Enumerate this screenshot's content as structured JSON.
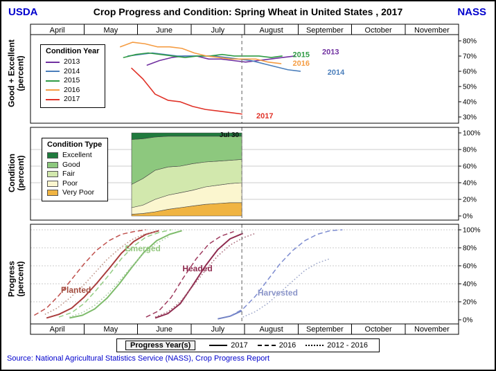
{
  "header": {
    "left": "USDA",
    "title": "Crop Progress and Condition: Spring Wheat in United States , 2017",
    "right": "NASS"
  },
  "source": "Source: National Agricultural Statistics Service (NASS), Crop Progress Report",
  "months": [
    "April",
    "May",
    "June",
    "July",
    "August",
    "September",
    "October",
    "November"
  ],
  "reference_line": {
    "label": "Jul 30",
    "month_x": 3.95
  },
  "panel1": {
    "ylabel": "Good + Excellent",
    "ylabel2": "(percent)",
    "yticks": [
      {
        "v": 80,
        "label": "80%"
      },
      {
        "v": 70,
        "label": "70%"
      },
      {
        "v": 60,
        "label": "60%"
      },
      {
        "v": 50,
        "label": "50%"
      },
      {
        "v": 40,
        "label": "40%"
      },
      {
        "v": 30,
        "label": "30%"
      }
    ],
    "legend": {
      "title": "Condition Year",
      "items": [
        {
          "label": "2013",
          "color": "#7030a0"
        },
        {
          "label": "2014",
          "color": "#4a7ebb"
        },
        {
          "label": "2015",
          "color": "#2e9b44"
        },
        {
          "label": "2016",
          "color": "#f59c42"
        },
        {
          "label": "2017",
          "color": "#e03127"
        }
      ]
    }
  },
  "panel2": {
    "ylabel": "Condition",
    "ylabel2": "(percent)",
    "yticks": [
      {
        "v": 100,
        "label": "100%"
      },
      {
        "v": 80,
        "label": "80%"
      },
      {
        "v": 60,
        "label": "60%"
      },
      {
        "v": 40,
        "label": "40%"
      },
      {
        "v": 20,
        "label": "20%"
      },
      {
        "v": 0,
        "label": "0%"
      }
    ],
    "legend": {
      "title": "Condition Type",
      "items": [
        {
          "label": "Excellent",
          "color": "#1f7a3d"
        },
        {
          "label": "Good",
          "color": "#8dc87e"
        },
        {
          "label": "Fair",
          "color": "#d2e8ad"
        },
        {
          "label": "Poor",
          "color": "#fbf6cf"
        },
        {
          "label": "Very Poor",
          "color": "#f0b442"
        }
      ]
    }
  },
  "panel3": {
    "ylabel": "Progress",
    "ylabel2": "(percent)",
    "yticks": [
      {
        "v": 100,
        "label": "100%"
      },
      {
        "v": 80,
        "label": "80%"
      },
      {
        "v": 60,
        "label": "60%"
      },
      {
        "v": 40,
        "label": "40%"
      },
      {
        "v": 20,
        "label": "20%"
      },
      {
        "v": 0,
        "label": "0%"
      }
    ]
  },
  "footer_legend": {
    "title": "Progress Year(s)",
    "items": [
      {
        "label": "2017",
        "style": "solid"
      },
      {
        "label": "2016",
        "style": "dashed"
      },
      {
        "label": "2012 - 2016",
        "style": "dotted"
      }
    ]
  },
  "chart_data": [
    {
      "type": "line",
      "panel": "good_excellent",
      "title": "Good + Excellent (percent)",
      "x_unit": "months_after_april_1",
      "ylim": [
        26,
        84
      ],
      "series": [
        {
          "name": "2013",
          "color": "#7030a0",
          "x": [
            2.18,
            2.41,
            2.64,
            2.87,
            3.1,
            3.33,
            3.56,
            3.79,
            4.02,
            4.25,
            4.48,
            4.71,
            4.94
          ],
          "values": [
            64,
            67,
            69,
            70,
            70,
            68,
            68,
            67,
            66,
            67,
            68,
            69,
            70
          ],
          "end_label": {
            "x": 5.45,
            "v": 73
          }
        },
        {
          "name": "2014",
          "color": "#4a7ebb",
          "x": [
            1.82,
            2.05,
            2.28,
            2.51,
            2.74,
            2.97,
            3.2,
            3.43,
            3.66,
            3.89,
            4.12,
            4.35,
            4.58,
            4.81,
            5.04
          ],
          "values": [
            70,
            71,
            72,
            71,
            70,
            70,
            70,
            70,
            69,
            68,
            67,
            65,
            63,
            61,
            60
          ],
          "end_label": {
            "x": 5.55,
            "v": 59.5
          }
        },
        {
          "name": "2015",
          "color": "#2e9b44",
          "x": [
            1.74,
            1.97,
            2.2,
            2.43,
            2.66,
            2.89,
            3.12,
            3.35,
            3.58,
            3.81,
            4.04,
            4.27,
            4.5,
            4.7
          ],
          "values": [
            69,
            71,
            72,
            71,
            70,
            69,
            70,
            70,
            71,
            70,
            70,
            70,
            69,
            70
          ],
          "end_label": {
            "x": 4.9,
            "v": 71
          }
        },
        {
          "name": "2016",
          "color": "#f59c42",
          "x": [
            1.68,
            1.91,
            2.14,
            2.37,
            2.6,
            2.83,
            3.06,
            3.29,
            3.52,
            3.75,
            3.98,
            4.21,
            4.44,
            4.68
          ],
          "values": [
            76,
            79,
            78,
            76,
            76,
            75,
            72,
            70,
            69,
            68,
            68,
            68,
            66,
            65
          ],
          "end_label": {
            "x": 4.9,
            "v": 65.5
          }
        },
        {
          "name": "2017",
          "color": "#e03127",
          "x": [
            1.89,
            2.1,
            2.33,
            2.57,
            2.8,
            3.03,
            3.27,
            3.5,
            3.73,
            3.95
          ],
          "values": [
            62,
            55,
            45,
            41,
            40,
            37,
            35,
            34,
            33,
            32
          ],
          "end_label": {
            "x": 4.22,
            "v": 31
          }
        }
      ]
    },
    {
      "type": "area",
      "panel": "condition",
      "title": "Condition (percent)",
      "stacked": true,
      "x_unit": "months_after_april_1",
      "x": [
        1.89,
        2.1,
        2.33,
        2.57,
        2.8,
        3.03,
        3.27,
        3.5,
        3.73,
        3.95
      ],
      "bands": [
        {
          "name": "Very Poor",
          "color": "#f0b442",
          "values": [
            2,
            3,
            5,
            8,
            10,
            12,
            14,
            15,
            16,
            16
          ]
        },
        {
          "name": "Poor",
          "color": "#fbf6cf",
          "values": [
            8,
            10,
            15,
            17,
            18,
            19,
            21,
            22,
            23,
            24
          ]
        },
        {
          "name": "Fair",
          "color": "#d2e8ad",
          "values": [
            28,
            32,
            35,
            34,
            32,
            32,
            30,
            29,
            28,
            28
          ]
        },
        {
          "name": "Good",
          "color": "#8dc87e",
          "values": [
            54,
            48,
            40,
            37,
            36,
            33,
            31,
            30,
            29,
            28
          ]
        },
        {
          "name": "Excellent",
          "color": "#1f7a3d",
          "values": [
            8,
            7,
            5,
            4,
            4,
            4,
            4,
            4,
            4,
            4
          ]
        }
      ]
    },
    {
      "type": "line",
      "panel": "progress",
      "title": "Progress (percent)",
      "x_unit": "months_after_april_1",
      "ylim": [
        0,
        100
      ],
      "groups": [
        {
          "name": "Planted",
          "label_color": "#a04a3c",
          "label_pos": {
            "x": 0.85,
            "v": 30
          },
          "lines": [
            {
              "year": "2017",
              "style": "solid",
              "color": "#a93c3c",
              "x": [
                0.3,
                0.53,
                0.77,
                1.0,
                1.23,
                1.47,
                1.7,
                1.93,
                2.16,
                2.4
              ],
              "values": [
                2,
                6,
                13,
                25,
                40,
                57,
                74,
                87,
                95,
                99
              ]
            },
            {
              "year": "2016",
              "style": "dashed",
              "color": "#c0504d",
              "x": [
                0.07,
                0.3,
                0.53,
                0.77,
                1.0,
                1.23,
                1.47,
                1.7,
                1.93,
                2.16
              ],
              "values": [
                5,
                13,
                27,
                45,
                62,
                77,
                88,
                95,
                98,
                100
              ]
            },
            {
              "year": "2012 - 2016",
              "style": "dotted",
              "color": "#bc8f82",
              "x": [
                0.27,
                0.5,
                0.73,
                0.97,
                1.2,
                1.43,
                1.66,
                1.89,
                2.12,
                2.36
              ],
              "values": [
                6,
                13,
                24,
                37,
                52,
                67,
                79,
                89,
                95,
                98
              ]
            }
          ]
        },
        {
          "name": "Emerged",
          "label_color": "#94c880",
          "label_pos": {
            "x": 2.1,
            "v": 76
          },
          "lines": [
            {
              "year": "2017",
              "style": "solid",
              "color": "#7dbb6a",
              "x": [
                0.73,
                0.97,
                1.2,
                1.43,
                1.66,
                1.89,
                2.12,
                2.36,
                2.6,
                2.83
              ],
              "values": [
                2,
                5,
                12,
                24,
                40,
                58,
                75,
                88,
                95,
                99
              ]
            },
            {
              "year": "2016",
              "style": "dashed",
              "color": "#93cd84",
              "x": [
                0.53,
                0.77,
                1.0,
                1.23,
                1.47,
                1.7,
                1.93,
                2.16,
                2.4,
                2.63
              ],
              "values": [
                3,
                8,
                18,
                33,
                50,
                68,
                82,
                92,
                97,
                100
              ]
            },
            {
              "year": "2012 - 2016",
              "style": "dotted",
              "color": "#a8c9a0",
              "x": [
                0.73,
                0.97,
                1.2,
                1.43,
                1.66,
                1.89,
                2.12,
                2.36,
                2.6
              ],
              "values": [
                3,
                8,
                16,
                28,
                43,
                59,
                74,
                85,
                93
              ]
            }
          ]
        },
        {
          "name": "Headed",
          "label_color": "#8e2a4e",
          "label_pos": {
            "x": 3.12,
            "v": 54
          },
          "lines": [
            {
              "year": "2017",
              "style": "solid",
              "color": "#8e2a4e",
              "x": [
                2.33,
                2.57,
                2.8,
                3.03,
                3.27,
                3.5,
                3.73,
                3.97
              ],
              "values": [
                2,
                7,
                18,
                38,
                60,
                78,
                90,
                96
              ]
            },
            {
              "year": "2016",
              "style": "dashed",
              "color": "#9e3a5e",
              "x": [
                2.16,
                2.4,
                2.63,
                2.86,
                3.1,
                3.33,
                3.56,
                3.8
              ],
              "values": [
                3,
                10,
                25,
                47,
                68,
                84,
                93,
                98
              ]
            },
            {
              "year": "2012 - 2016",
              "style": "dotted",
              "color": "#a86878",
              "x": [
                2.33,
                2.57,
                2.8,
                3.03,
                3.27,
                3.5,
                3.73,
                3.97,
                4.2
              ],
              "values": [
                3,
                9,
                20,
                37,
                55,
                71,
                83,
                91,
                96
              ]
            }
          ]
        },
        {
          "name": "Harvested",
          "label_color": "#8b95c9",
          "label_pos": {
            "x": 4.62,
            "v": 27
          },
          "lines": [
            {
              "year": "2017",
              "style": "solid",
              "color": "#6f7fc3",
              "x": [
                3.5,
                3.73,
                3.95
              ],
              "values": [
                1,
                4,
                10
              ]
            },
            {
              "year": "2016",
              "style": "dashed",
              "color": "#7d8cd0",
              "x": [
                3.73,
                3.97,
                4.2,
                4.43,
                4.66,
                4.9,
                5.13,
                5.36,
                5.6,
                5.83
              ],
              "values": [
                4,
                12,
                26,
                44,
                62,
                77,
                88,
                95,
                99,
                100
              ]
            },
            {
              "year": "2012 - 2016",
              "style": "dotted",
              "color": "#9aa4c8",
              "x": [
                3.97,
                4.2,
                4.43,
                4.66,
                4.9,
                5.13,
                5.36,
                5.6
              ],
              "values": [
                3,
                9,
                18,
                30,
                43,
                55,
                63,
                68
              ]
            }
          ]
        }
      ]
    }
  ]
}
